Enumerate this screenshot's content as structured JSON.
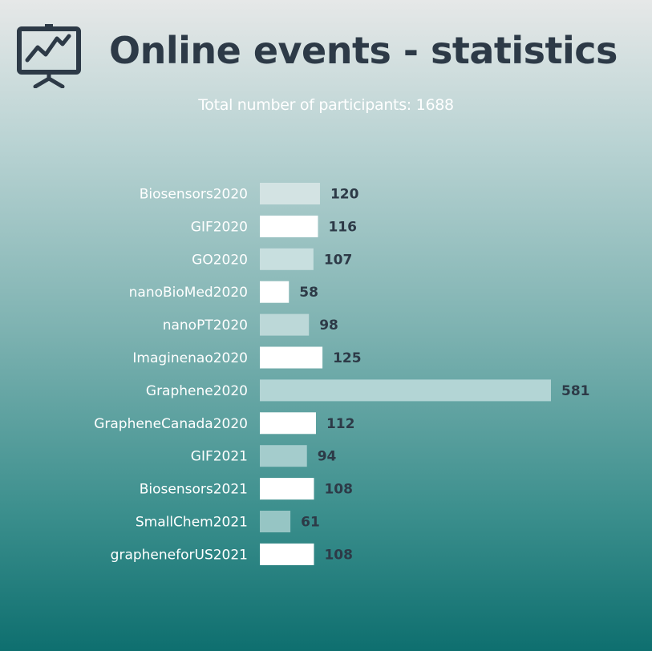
{
  "header": {
    "icon": "presentation-chart-icon",
    "title": "Online events - statistics",
    "subtitle": "Total number of participants: 1688"
  },
  "colors": {
    "title": "#2d3a47",
    "value_label": "#2d3a47",
    "category_label": "#ffffff",
    "bar_white": "#ffffff",
    "bar_tints": [
      "#d3e3e3",
      "#ffffff",
      "#c8dfdf",
      "#ffffff",
      "#bcd8d8",
      "#ffffff",
      "#b3d5d5",
      "#ffffff",
      "#a4cccc",
      "#ffffff",
      "#96c5c4",
      "#ffffff"
    ]
  },
  "chart_data": {
    "type": "bar",
    "orientation": "horizontal",
    "categories": [
      "Biosensors2020",
      "GIF2020",
      "GO2020",
      "nanoBioMed2020",
      "nanoPT2020",
      "Imaginenao2020",
      "Graphene2020",
      "GrapheneCanada2020",
      "GIF2021",
      "Biosensors2021",
      "SmallChem2021",
      "grapheneforUS2021"
    ],
    "values": [
      120,
      116,
      107,
      58,
      98,
      125,
      581,
      112,
      94,
      108,
      61,
      108
    ],
    "xlim": [
      0,
      581
    ],
    "grid": false,
    "legend": "none",
    "data_labels": true
  }
}
